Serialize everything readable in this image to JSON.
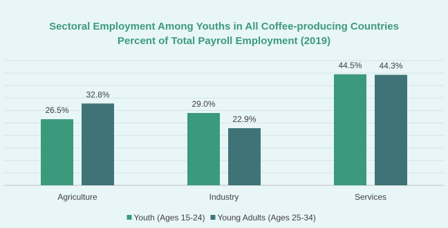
{
  "chart_data": {
    "type": "bar",
    "title": "Sectoral Employment Among Youths in All Coffee-producing Countries",
    "subtitle": "Percent of Total Payroll Employment (2019)",
    "categories": [
      "Agriculture",
      "Industry",
      "Services"
    ],
    "series": [
      {
        "name": "Youth (Ages 15-24)",
        "values": [
          26.5,
          29.0,
          44.5
        ],
        "labels": [
          "26.5%",
          "29.0%",
          "44.5%"
        ],
        "color": "#3a9a7b"
      },
      {
        "name": "Young Adults (Ages 25-34)",
        "values": [
          32.8,
          22.9,
          44.3
        ],
        "labels": [
          "32.8%",
          "22.9%",
          "44.3%"
        ],
        "color": "#3f7377"
      }
    ],
    "ylim": [
      0,
      50
    ],
    "grid": true,
    "legend": "bottom-center",
    "title_color": "#3d9a7a",
    "background": "#e8f6f8"
  }
}
